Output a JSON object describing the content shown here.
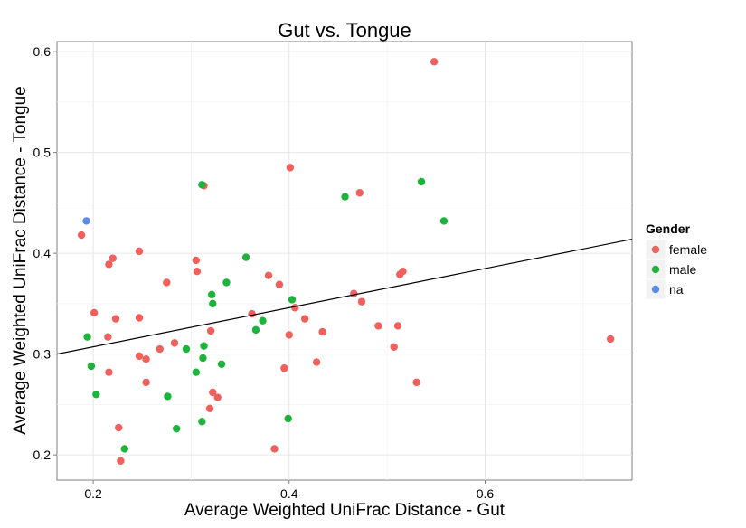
{
  "chart_data": {
    "type": "scatter",
    "title": "Gut vs. Tongue",
    "xlabel": "Average Weighted UniFrac Distance - Gut",
    "ylabel": "Average Weighted UniFrac Distance - Tongue",
    "xlim": [
      0.163,
      0.75
    ],
    "ylim": [
      0.175,
      0.61
    ],
    "x_ticks": [
      0.2,
      0.4,
      0.6
    ],
    "x_tick_labels": [
      "0.2",
      "0.4",
      "0.6"
    ],
    "y_ticks": [
      0.2,
      0.3,
      0.4,
      0.5,
      0.6
    ],
    "y_tick_labels": [
      "0.2",
      "0.3",
      "0.4",
      "0.5",
      "0.6"
    ],
    "grid": true,
    "legend": {
      "title": "Gender",
      "placement": "right",
      "entries": [
        {
          "label": "female",
          "color": "#F0605C"
        },
        {
          "label": "male",
          "color": "#1EB43C"
        },
        {
          "label": "na",
          "color": "#5B8DEE"
        }
      ]
    },
    "trend_line": {
      "x": [
        0.163,
        0.75
      ],
      "y": [
        0.3,
        0.414
      ]
    },
    "series": [
      {
        "name": "female",
        "color": "#F0605C",
        "points": [
          [
            0.188,
            0.418
          ],
          [
            0.548,
            0.59
          ],
          [
            0.401,
            0.485
          ],
          [
            0.313,
            0.467
          ],
          [
            0.472,
            0.46
          ],
          [
            0.247,
            0.402
          ],
          [
            0.22,
            0.395
          ],
          [
            0.216,
            0.389
          ],
          [
            0.305,
            0.393
          ],
          [
            0.306,
            0.382
          ],
          [
            0.516,
            0.382
          ],
          [
            0.513,
            0.379
          ],
          [
            0.379,
            0.378
          ],
          [
            0.275,
            0.371
          ],
          [
            0.39,
            0.369
          ],
          [
            0.466,
            0.36
          ],
          [
            0.474,
            0.352
          ],
          [
            0.406,
            0.346
          ],
          [
            0.201,
            0.341
          ],
          [
            0.362,
            0.34
          ],
          [
            0.223,
            0.335
          ],
          [
            0.247,
            0.336
          ],
          [
            0.416,
            0.335
          ],
          [
            0.491,
            0.328
          ],
          [
            0.511,
            0.328
          ],
          [
            0.32,
            0.323
          ],
          [
            0.434,
            0.322
          ],
          [
            0.4,
            0.319
          ],
          [
            0.215,
            0.317
          ],
          [
            0.728,
            0.315
          ],
          [
            0.283,
            0.311
          ],
          [
            0.507,
            0.307
          ],
          [
            0.268,
            0.305
          ],
          [
            0.247,
            0.298
          ],
          [
            0.254,
            0.295
          ],
          [
            0.428,
            0.292
          ],
          [
            0.395,
            0.286
          ],
          [
            0.216,
            0.282
          ],
          [
            0.254,
            0.272
          ],
          [
            0.53,
            0.272
          ],
          [
            0.322,
            0.262
          ],
          [
            0.327,
            0.257
          ],
          [
            0.319,
            0.246
          ],
          [
            0.226,
            0.227
          ],
          [
            0.385,
            0.206
          ],
          [
            0.228,
            0.194
          ]
        ]
      },
      {
        "name": "male",
        "color": "#1EB43C",
        "points": [
          [
            0.311,
            0.468
          ],
          [
            0.535,
            0.471
          ],
          [
            0.457,
            0.456
          ],
          [
            0.558,
            0.432
          ],
          [
            0.356,
            0.396
          ],
          [
            0.336,
            0.371
          ],
          [
            0.321,
            0.359
          ],
          [
            0.403,
            0.354
          ],
          [
            0.322,
            0.35
          ],
          [
            0.373,
            0.333
          ],
          [
            0.366,
            0.324
          ],
          [
            0.194,
            0.317
          ],
          [
            0.313,
            0.308
          ],
          [
            0.295,
            0.305
          ],
          [
            0.312,
            0.296
          ],
          [
            0.331,
            0.29
          ],
          [
            0.198,
            0.288
          ],
          [
            0.305,
            0.282
          ],
          [
            0.203,
            0.26
          ],
          [
            0.276,
            0.258
          ],
          [
            0.399,
            0.236
          ],
          [
            0.311,
            0.233
          ],
          [
            0.285,
            0.226
          ],
          [
            0.232,
            0.206
          ]
        ]
      },
      {
        "name": "na",
        "color": "#5B8DEE",
        "points": [
          [
            0.193,
            0.432
          ]
        ]
      }
    ]
  }
}
